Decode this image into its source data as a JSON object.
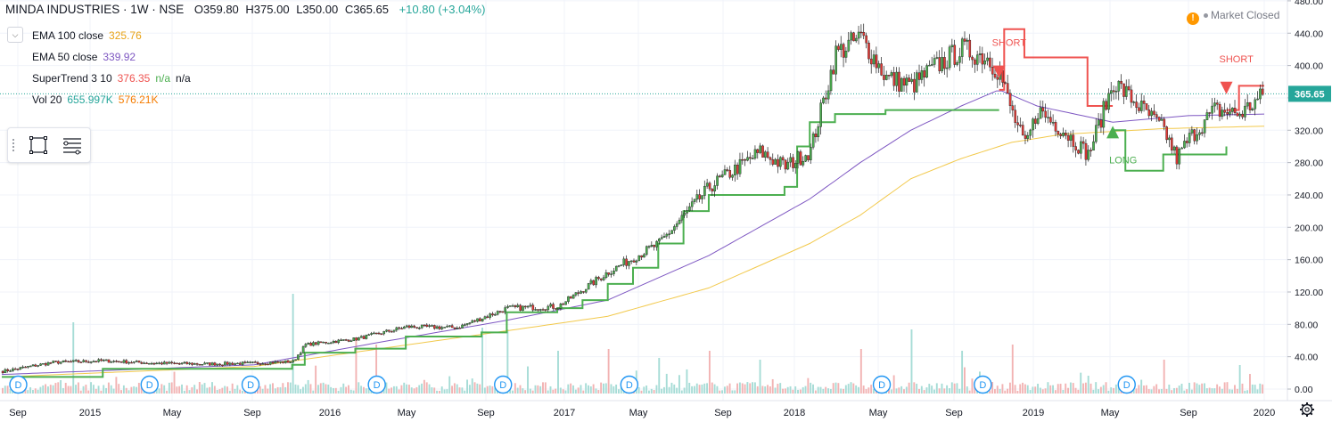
{
  "header": {
    "symbol": "MINDA INDUSTRIES · 1W · NSE",
    "o_label": "O",
    "o_value": "359.80",
    "h_label": "H",
    "h_value": "375.00",
    "l_label": "L",
    "l_value": "350.00",
    "c_label": "C",
    "c_value": "365.65",
    "change": "+10.80 (+3.04%)"
  },
  "indicators": [
    {
      "name": "EMA 100 close",
      "value": "325.76",
      "color": "#e8a317"
    },
    {
      "name": "EMA 50 close",
      "value": "339.92",
      "color": "#7e57c2"
    },
    {
      "name": "SuperTrend 3 10",
      "value": "376.35",
      "value2": "n/a",
      "value3": "n/a",
      "color": "#ef5350",
      "color2": "#4caf50"
    },
    {
      "name": "Vol 20",
      "value": "655.997K",
      "value2": "576.21K",
      "color": "#26a69a",
      "color2": "#f57c00"
    }
  ],
  "market_status": "Market Closed",
  "price_badge": "365.65",
  "chart_data": {
    "type": "candlestick",
    "title": "MINDA INDUSTRIES · 1W · NSE",
    "y_ticks": [
      "480.00",
      "440.00",
      "400.00",
      "360.00",
      "320.00",
      "280.00",
      "240.00",
      "200.00",
      "160.00",
      "120.00",
      "80.00",
      "40.00",
      "0.00"
    ],
    "ylim": [
      0,
      480
    ],
    "x_ticks": [
      "Sep",
      "2015",
      "May",
      "Sep",
      "2016",
      "May",
      "Sep",
      "2017",
      "May",
      "Sep",
      "2018",
      "May",
      "Sep",
      "2019",
      "May",
      "Sep",
      "2020"
    ],
    "close_anchors": [
      [
        0,
        22
      ],
      [
        20,
        33
      ],
      [
        40,
        35
      ],
      [
        60,
        32
      ],
      [
        80,
        31
      ],
      [
        100,
        32
      ],
      [
        115,
        34
      ],
      [
        120,
        55
      ],
      [
        140,
        62
      ],
      [
        160,
        77
      ],
      [
        180,
        76
      ],
      [
        200,
        100
      ],
      [
        220,
        102
      ],
      [
        240,
        145
      ],
      [
        260,
        180
      ],
      [
        280,
        250
      ],
      [
        300,
        293
      ],
      [
        310,
        275
      ],
      [
        320,
        295
      ],
      [
        330,
        415
      ],
      [
        340,
        435
      ],
      [
        350,
        385
      ],
      [
        360,
        375
      ],
      [
        370,
        400
      ],
      [
        380,
        420
      ],
      [
        390,
        410
      ],
      [
        395,
        390
      ],
      [
        400,
        340
      ],
      [
        405,
        300
      ],
      [
        410,
        345
      ],
      [
        420,
        320
      ],
      [
        430,
        290
      ],
      [
        440,
        380
      ],
      [
        450,
        350
      ],
      [
        460,
        320
      ],
      [
        465,
        285
      ],
      [
        470,
        310
      ],
      [
        480,
        345
      ],
      [
        490,
        340
      ],
      [
        500,
        365
      ]
    ],
    "ema50_anchors": [
      [
        0,
        18
      ],
      [
        100,
        30
      ],
      [
        150,
        58
      ],
      [
        200,
        85
      ],
      [
        240,
        110
      ],
      [
        280,
        165
      ],
      [
        320,
        235
      ],
      [
        340,
        280
      ],
      [
        360,
        320
      ],
      [
        380,
        350
      ],
      [
        395,
        370
      ],
      [
        410,
        350
      ],
      [
        440,
        330
      ],
      [
        470,
        338
      ],
      [
        500,
        340
      ]
    ],
    "ema100_anchors": [
      [
        0,
        15
      ],
      [
        100,
        28
      ],
      [
        150,
        50
      ],
      [
        200,
        72
      ],
      [
        240,
        90
      ],
      [
        280,
        125
      ],
      [
        320,
        180
      ],
      [
        340,
        215
      ],
      [
        360,
        260
      ],
      [
        380,
        285
      ],
      [
        400,
        305
      ],
      [
        420,
        315
      ],
      [
        460,
        322
      ],
      [
        500,
        325
      ]
    ],
    "supertrend_long": [
      [
        0,
        15
      ],
      [
        40,
        25
      ],
      [
        115,
        30
      ],
      [
        120,
        45
      ],
      [
        140,
        50
      ],
      [
        160,
        65
      ],
      [
        190,
        70
      ],
      [
        200,
        95
      ],
      [
        220,
        100
      ],
      [
        230,
        110
      ],
      [
        240,
        130
      ],
      [
        250,
        150
      ],
      [
        260,
        180
      ],
      [
        270,
        220
      ],
      [
        280,
        240
      ],
      [
        300,
        240
      ],
      [
        310,
        250
      ],
      [
        315,
        300
      ],
      [
        320,
        330
      ],
      [
        330,
        340
      ],
      [
        340,
        340
      ],
      [
        350,
        345
      ],
      [
        395,
        345
      ]
    ],
    "supertrend_short": [
      [
        395,
        370
      ],
      [
        397,
        445
      ],
      [
        405,
        410
      ],
      [
        425,
        410
      ],
      [
        430,
        350
      ],
      [
        440,
        350
      ]
    ],
    "supertrend_long2": [
      [
        440,
        320
      ],
      [
        445,
        270
      ],
      [
        455,
        270
      ],
      [
        460,
        290
      ],
      [
        480,
        290
      ],
      [
        485,
        300
      ]
    ],
    "supertrend_short2": [
      [
        485,
        345
      ],
      [
        490,
        375
      ],
      [
        500,
        375
      ]
    ],
    "signal_labels": [
      "SHORT",
      "LONG",
      "SHORT"
    ],
    "volume_spikes": [
      [
        28,
        80
      ],
      [
        115,
        112
      ],
      [
        140,
        60
      ],
      [
        148,
        55
      ],
      [
        190,
        74
      ],
      [
        200,
        72
      ],
      [
        220,
        48
      ],
      [
        240,
        50
      ],
      [
        260,
        40
      ],
      [
        280,
        48
      ],
      [
        300,
        38
      ],
      [
        340,
        50
      ],
      [
        360,
        72
      ],
      [
        380,
        48
      ],
      [
        400,
        40
      ],
      [
        430,
        20
      ],
      [
        460,
        38
      ],
      [
        490,
        32
      ]
    ],
    "dividend_marker": "D",
    "dividend_positions": [
      3,
      55,
      95,
      145,
      195,
      245,
      345,
      385,
      442
    ]
  }
}
